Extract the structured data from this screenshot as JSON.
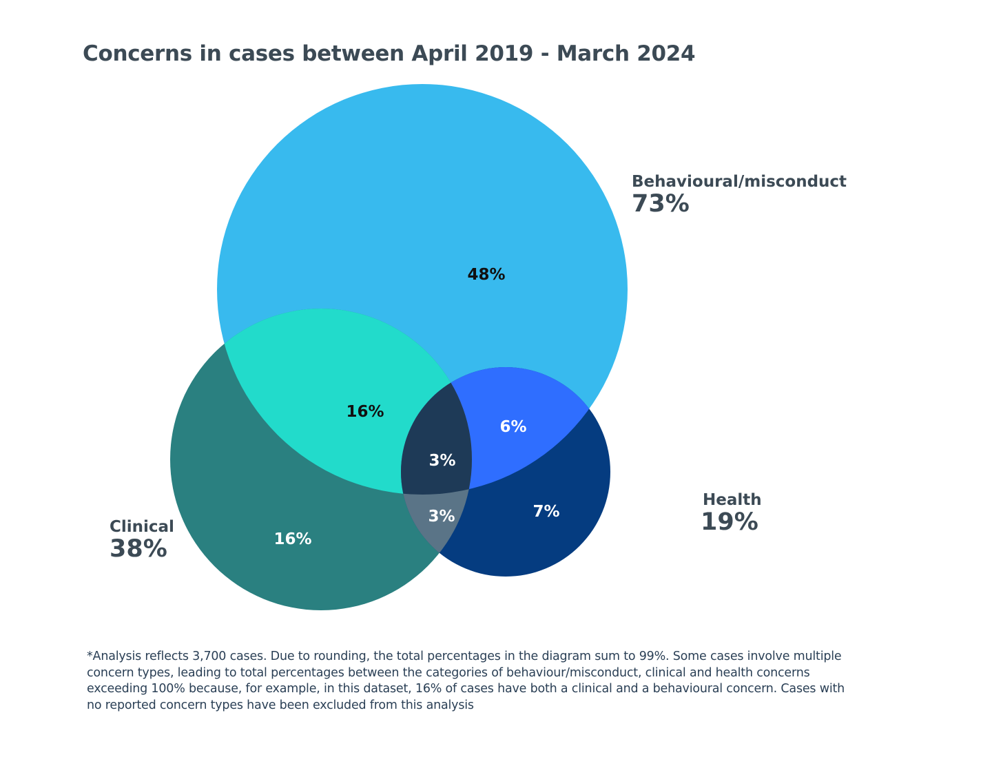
{
  "chart_data": {
    "type": "venn",
    "title": "Concerns in cases between April 2019 - March 2024",
    "sets": [
      {
        "name": "Behavioural/misconduct",
        "total": "73%",
        "color": "#38BAEE"
      },
      {
        "name": "Clinical",
        "total": "38%",
        "color": "#2A8080"
      },
      {
        "name": "Health",
        "total": "19%",
        "color": "#053C80"
      }
    ],
    "regions": {
      "behavioural_only": {
        "label": "48%",
        "color": "#38BAEE"
      },
      "clinical_only": {
        "label": "16%",
        "color": "#2A8080"
      },
      "health_only": {
        "label": "7%",
        "color": "#053C80"
      },
      "behavioural_clinical": {
        "label": "16%",
        "color": "#22DBCB"
      },
      "behavioural_health": {
        "label": "6%",
        "color": "#2F6EFF"
      },
      "clinical_health": {
        "label": "3%",
        "color": "#5A7487"
      },
      "all_three": {
        "label": "3%",
        "color": "#1E3A57"
      }
    },
    "footnote": [
      "*Analysis reflects 3,700 cases. Due to rounding, the total percentages in the diagram sum to 99%. Some cases involve multiple",
      "concern types, leading to total percentages between the categories of behaviour/misconduct, clinical and health concerns",
      "exceeding 100% because, for example, in this dataset, 16% of cases have both a clinical and a behavioural concern. Cases with",
      "no reported concern types have been excluded from this analysis"
    ]
  }
}
